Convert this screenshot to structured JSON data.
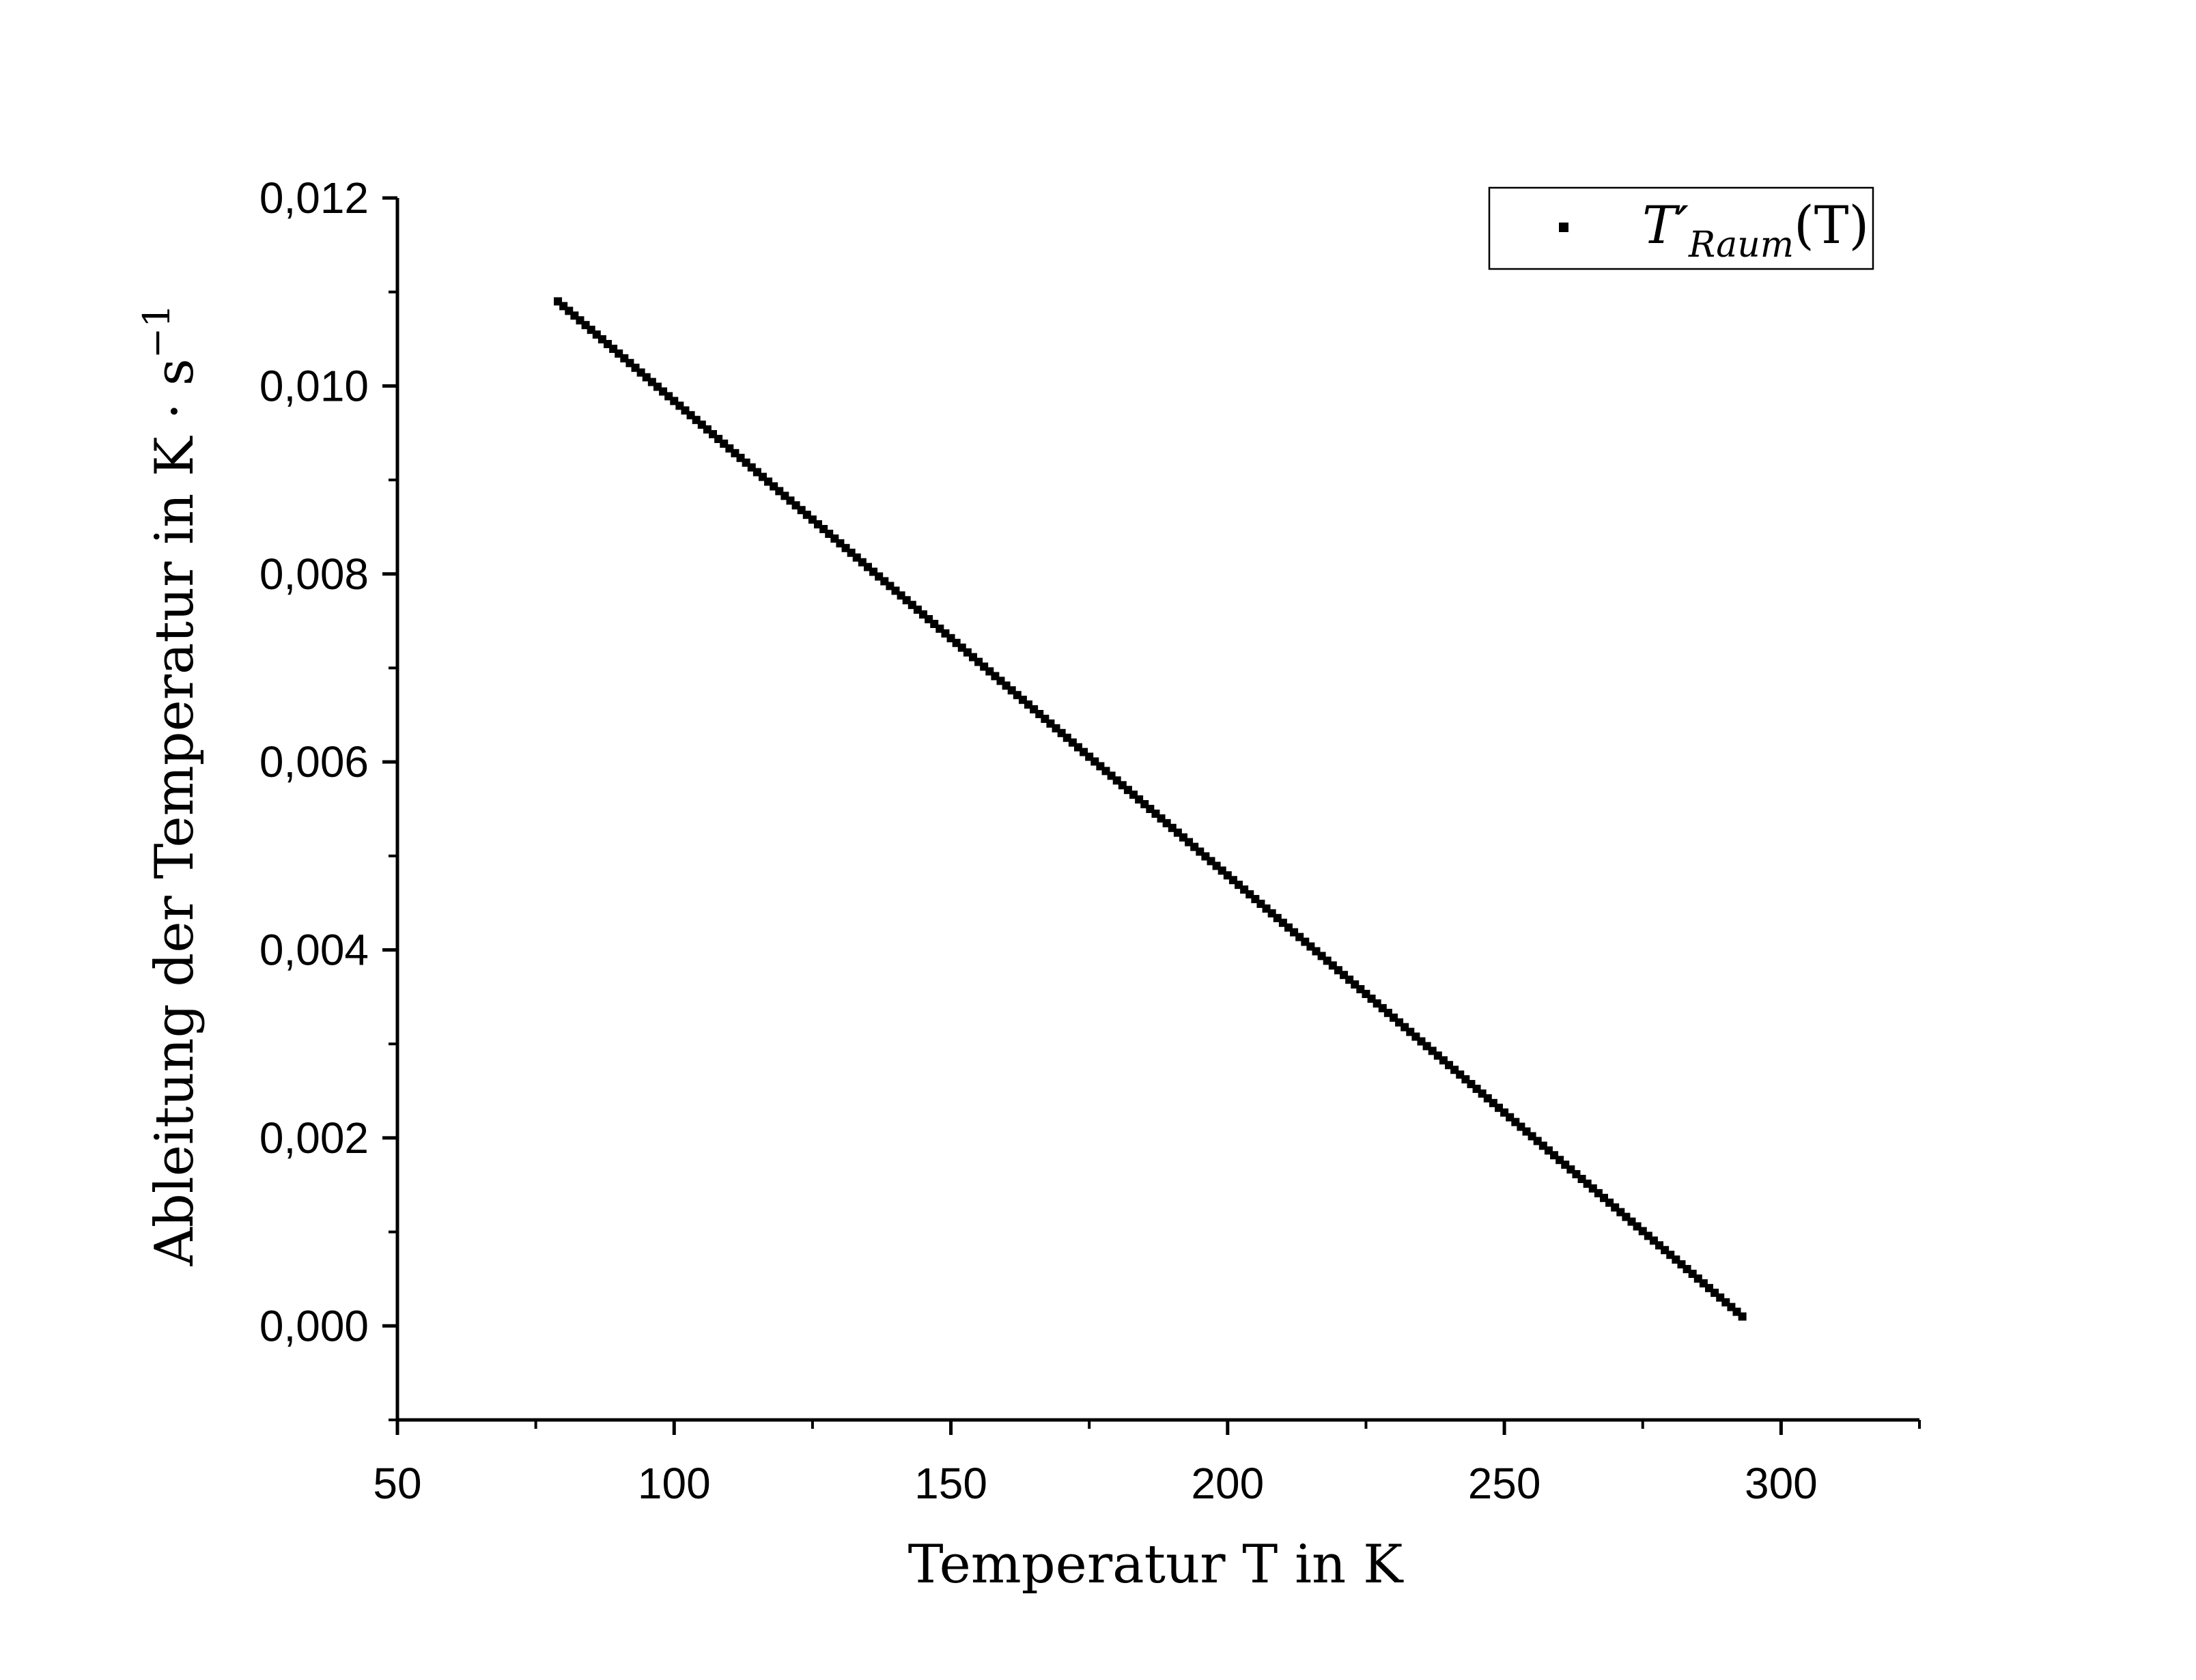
{
  "chart_data": {
    "type": "scatter",
    "title": "",
    "xlabel": "Temperatur T in K",
    "ylabel": "Ableitung der Temperatur in K · s",
    "ylabel_exponent": "−1",
    "xlim": [
      50,
      325
    ],
    "ylim": [
      -0.001,
      0.012
    ],
    "x_ticks": [
      50,
      100,
      150,
      200,
      250,
      300
    ],
    "x_tick_labels": [
      "50",
      "100",
      "150",
      "200",
      "250",
      "300"
    ],
    "y_ticks": [
      0,
      0.002,
      0.004,
      0.006,
      0.008,
      0.01,
      0.012
    ],
    "y_tick_labels": [
      "0,000",
      "0,002",
      "0,004",
      "0,006",
      "0,008",
      "0,010",
      "0,012"
    ],
    "grid": false,
    "legend_position": "top-right",
    "marker_color": "#000000",
    "series": [
      {
        "name": "T′Raum(T)",
        "name_main": "T′",
        "name_sub": "Raum",
        "name_suffix": "(T)",
        "x_start": 79,
        "x_end": 293,
        "x_step": 1,
        "y_start": 0.0109,
        "y_end": 0.0001
      }
    ]
  }
}
